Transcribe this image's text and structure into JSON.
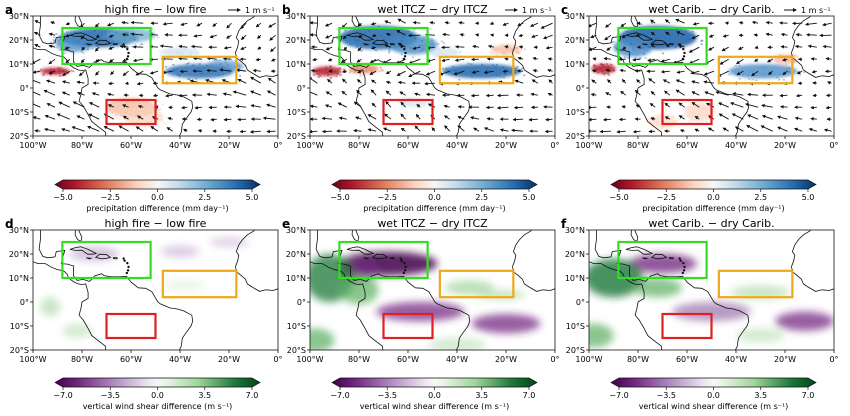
{
  "figure": {
    "panels": [
      {
        "label": "a",
        "title": "high fire − low fire",
        "row": "precipitation",
        "ref_vector": "1 m s⁻¹"
      },
      {
        "label": "b",
        "title": "wet ITCZ − dry ITCZ",
        "row": "precipitation",
        "ref_vector": "1 m s⁻¹"
      },
      {
        "label": "c",
        "title": "wet Carib. − dry Carib.",
        "row": "precipitation",
        "ref_vector": "1 m s⁻¹"
      },
      {
        "label": "d",
        "title": "high fire − low fire",
        "row": "shear"
      },
      {
        "label": "e",
        "title": "wet ITCZ − dry ITCZ",
        "row": "shear"
      },
      {
        "label": "f",
        "title": "wet Carib. − dry Carib.",
        "row": "shear"
      }
    ],
    "lon_ticks": [
      "100°W",
      "80°W",
      "60°W",
      "40°W",
      "20°W",
      "0°"
    ],
    "lat_ticks": [
      "30°N",
      "20°N",
      "10°N",
      "0°",
      "10°S",
      "20°S"
    ],
    "map_extent": {
      "lon": [
        -100,
        0
      ],
      "lat": [
        -20,
        30
      ]
    },
    "boxes": [
      {
        "name": "Caribbean",
        "color": "#33dd22",
        "lon": [
          -88,
          -52
        ],
        "lat": [
          10,
          25
        ]
      },
      {
        "name": "ITCZ",
        "color": "#f0a818",
        "lon": [
          -47,
          -17
        ],
        "lat": [
          2,
          13
        ]
      },
      {
        "name": "fire",
        "color": "#e02020",
        "lon": [
          -70,
          -50
        ],
        "lat": [
          -15,
          -5
        ]
      }
    ],
    "colorbars": {
      "precipitation": {
        "label": "precipitation difference (mm day⁻¹)",
        "ticks": [
          "−5.0",
          "−2.5",
          "0.0",
          "2.5",
          "5.0"
        ],
        "range": [
          -5,
          5
        ],
        "colormap": "RdBu"
      },
      "shear": {
        "label": "vertical wind shear difference (m s⁻¹)",
        "ticks": [
          "−7.0",
          "−3.5",
          "0.0",
          "3.5",
          "7.0"
        ],
        "range": [
          -7,
          7
        ],
        "colormap": "PRGn"
      }
    },
    "colors": {
      "land": "#111111",
      "wet": "#2166ac",
      "dry": "#b2182b",
      "shear_pos": "#1b7837",
      "shear_neg": "#762a83"
    }
  }
}
